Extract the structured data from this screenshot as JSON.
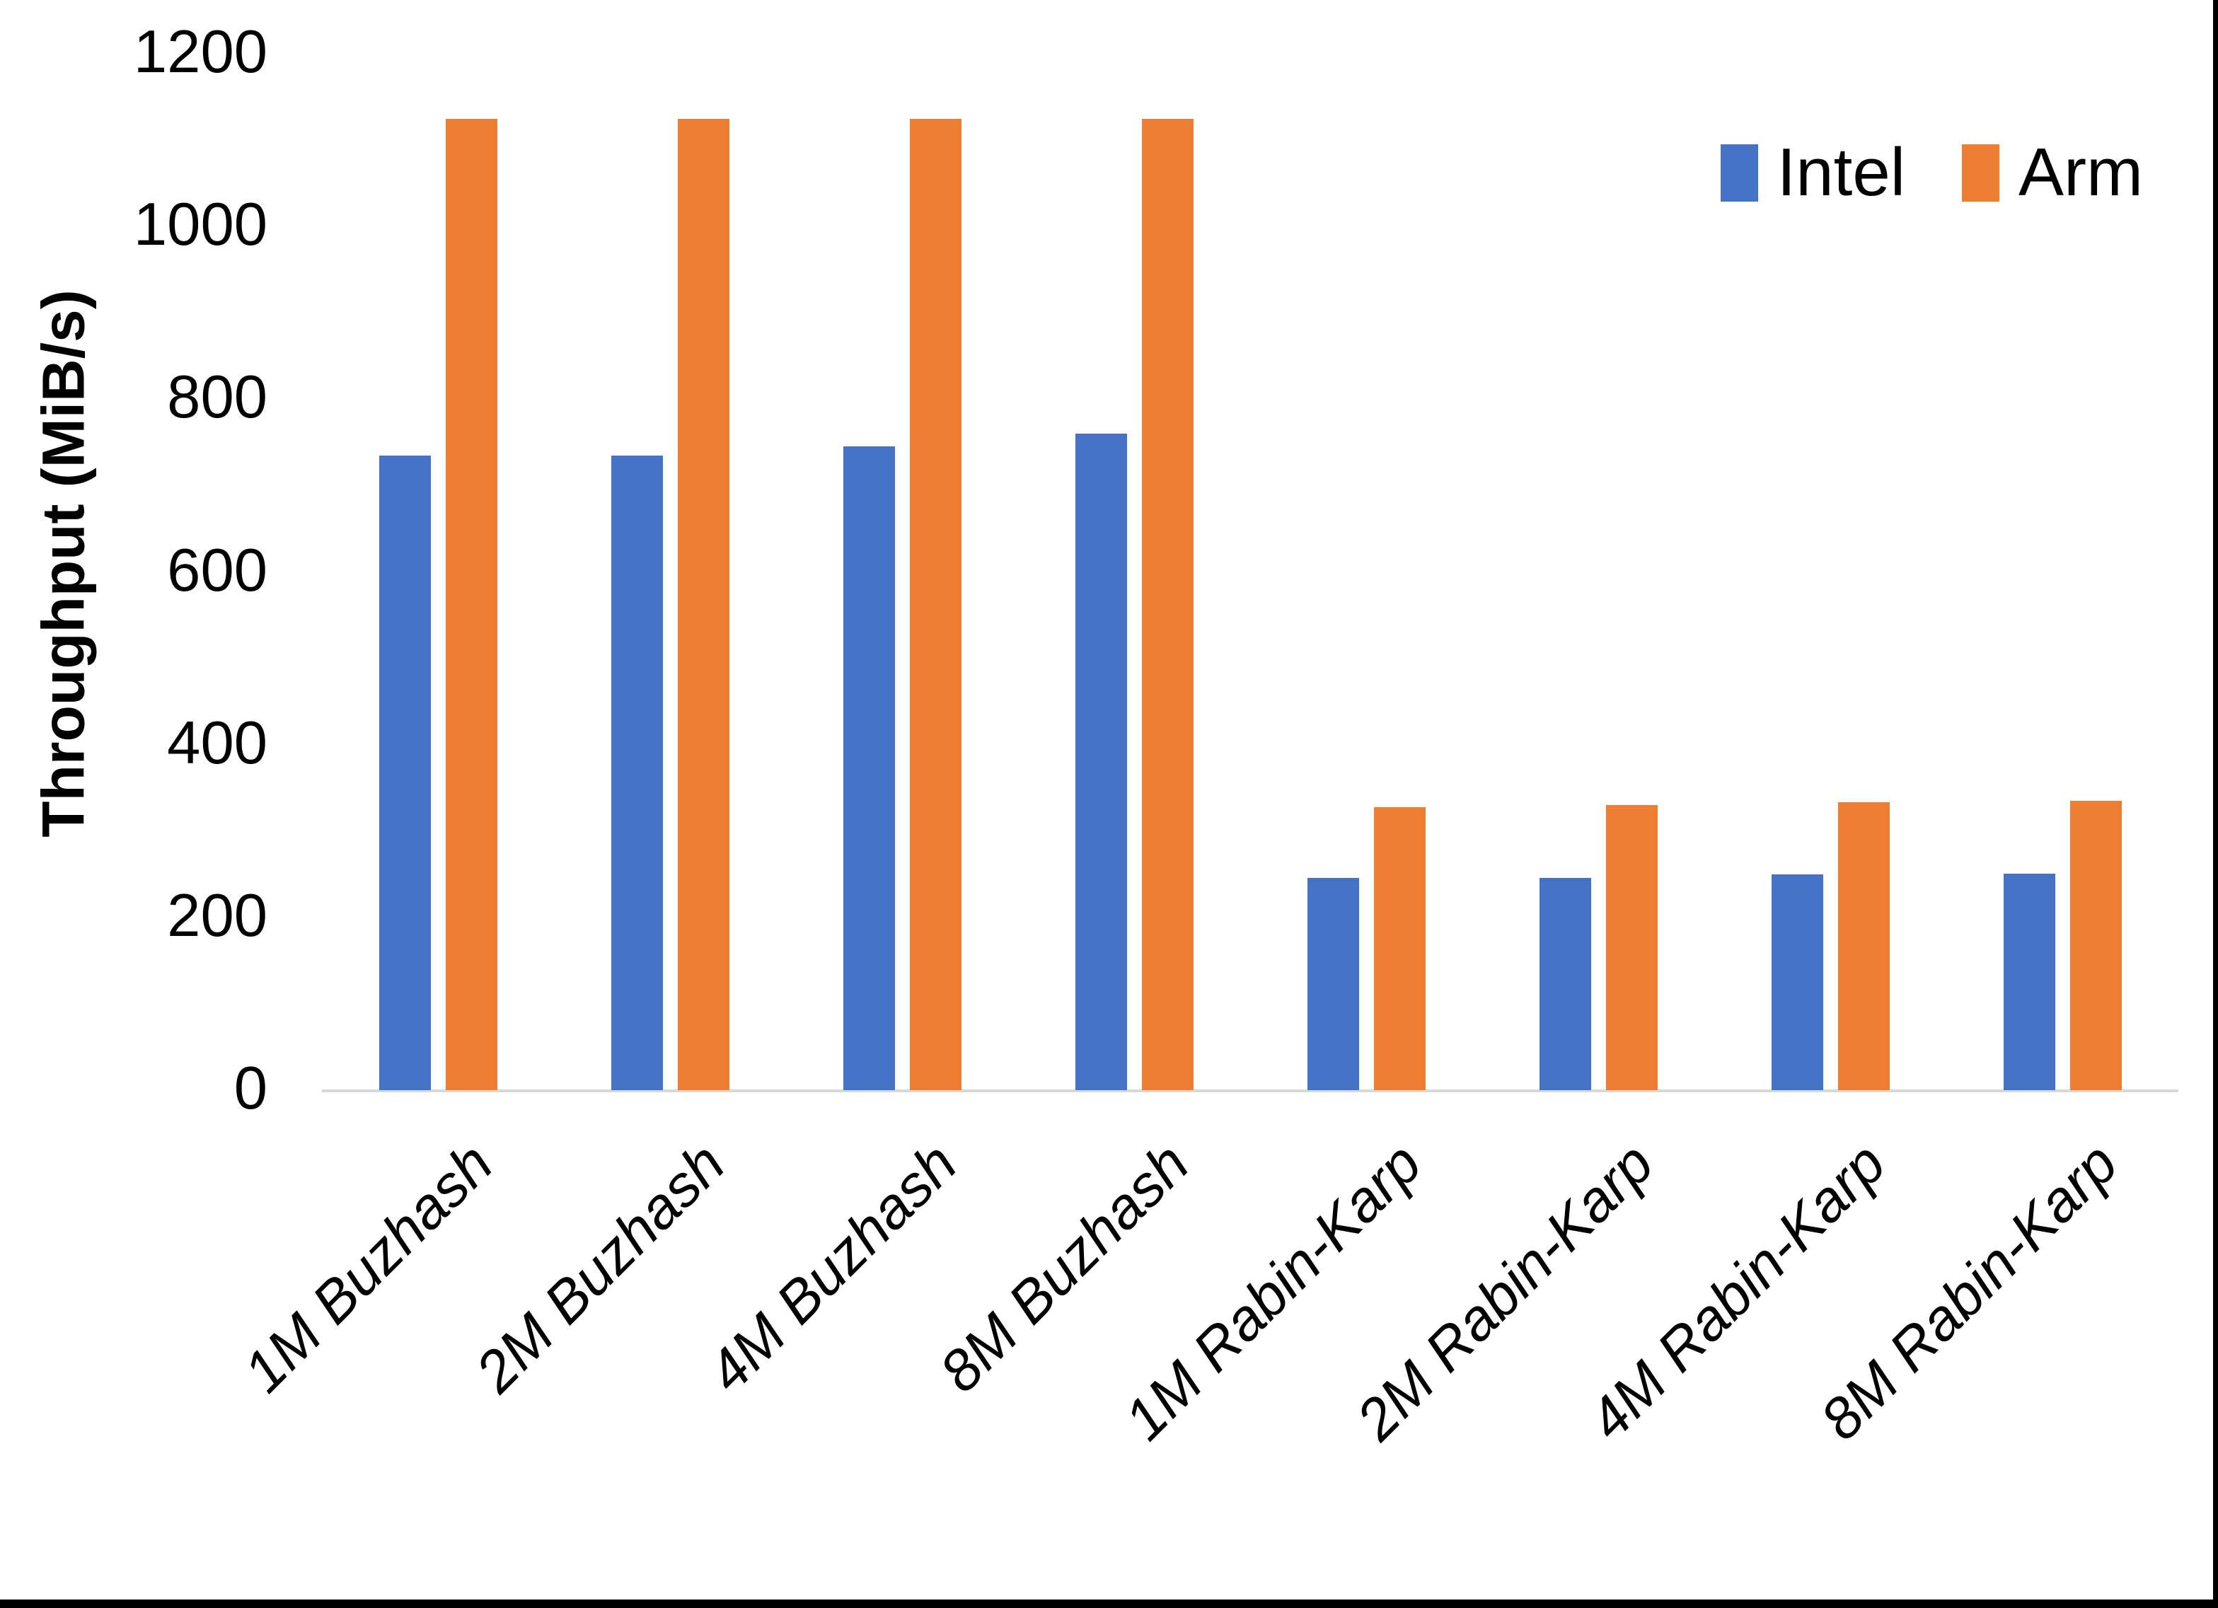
{
  "chart_data": {
    "type": "bar",
    "title": "",
    "xlabel": "",
    "ylabel": "Throughput (MiB/s)",
    "ylim": [
      0,
      1200
    ],
    "ytick_interval": 200,
    "yticks": [
      0,
      200,
      400,
      600,
      800,
      1000,
      1200
    ],
    "grid": false,
    "legend_position": "top-right",
    "axis_line_color": "#d9d9d9",
    "categories": [
      "1M Buzhash",
      "2M Buzhash",
      "4M Buzhash",
      "8M Buzhash",
      "1M Rabin-Karp",
      "2M Rabin-Karp",
      "4M Rabin-Karp",
      "8M Rabin-Karp"
    ],
    "series": [
      {
        "name": "Intel",
        "color": "#4472C4",
        "values": [
          735,
          735,
          745,
          760,
          246,
          246,
          250,
          251
        ]
      },
      {
        "name": "Arm",
        "color": "#ED7D31",
        "values": [
          1125,
          1125,
          1125,
          1125,
          328,
          330,
          333,
          335
        ]
      }
    ]
  }
}
